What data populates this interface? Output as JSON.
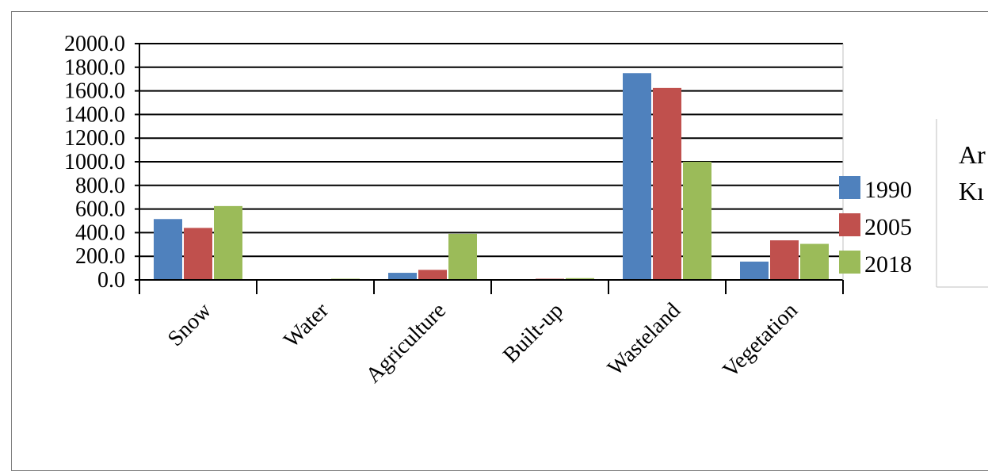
{
  "chart_data": {
    "type": "bar",
    "categories": [
      "Snow",
      "Water",
      "Agriculture",
      "Built-up",
      "Wasteland",
      "Vegetation"
    ],
    "series": [
      {
        "name": "1990",
        "color": "#4f81bd",
        "values": [
          515,
          5,
          60,
          5,
          1750,
          155
        ]
      },
      {
        "name": "2005",
        "color": "#c0504d",
        "values": [
          440,
          5,
          85,
          10,
          1625,
          335
        ]
      },
      {
        "name": "2018",
        "color": "#9bbb59",
        "values": [
          625,
          10,
          390,
          15,
          1000,
          305
        ]
      }
    ],
    "ylim": [
      0,
      2000
    ],
    "yticks": [
      "0.0",
      "200.0",
      "400.0",
      "600.0",
      "800.0",
      "1000.0",
      "1200.0",
      "1400.0",
      "1600.0",
      "1800.0",
      "2000.0"
    ],
    "grid": true,
    "legend_position": "right",
    "side_text": [
      "Ar",
      "Kı"
    ]
  }
}
